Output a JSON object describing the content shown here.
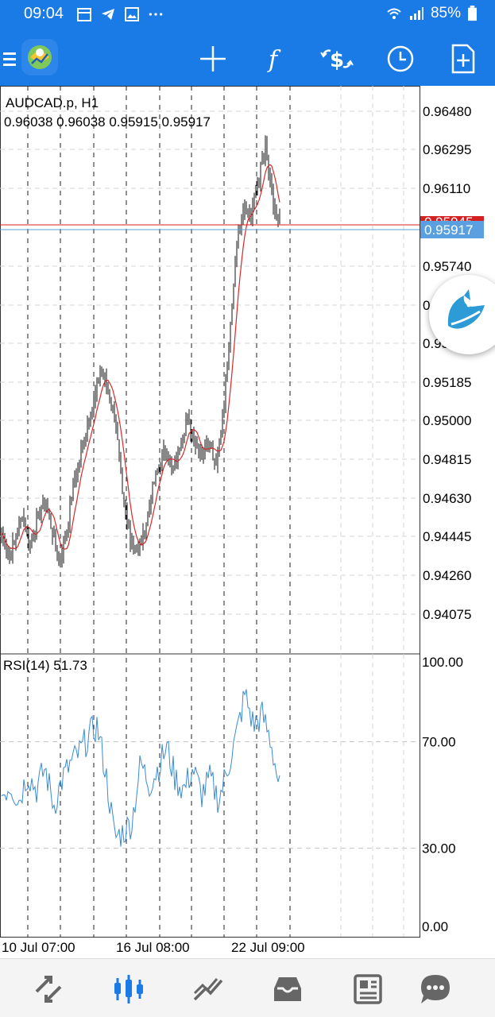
{
  "status_bar": {
    "time": "09:04",
    "battery": "85%",
    "left_icons": [
      "calendar-icon",
      "telegram-icon",
      "gallery-icon",
      "more-dots-icon"
    ],
    "right_icons": [
      "wifi-icon",
      "signal-icon",
      "battery-icon"
    ]
  },
  "toolbar": {
    "buttons": [
      "menu-icon",
      "metatrader-logo",
      "crosshair-icon",
      "indicator-icon",
      "trade-icon",
      "timeframe-icon",
      "new-order-icon"
    ]
  },
  "chart": {
    "symbol_timeframe": "AUDCAD.p, H1",
    "ohlc": "0.96038 0.96038 0.95915 0.95917",
    "price_ticks": [
      "0.96480",
      "0.96295",
      "0.96110",
      "0.95740",
      "0",
      "0.95",
      "0.95185",
      "0.95000",
      "0.94815",
      "0.94630",
      "0.94445",
      "0.94260",
      "0.94075"
    ],
    "bid_label": "0.95917",
    "ask_label": "0.95945",
    "date_labels": [
      "10 Jul 07:00",
      "16 Jul 08:00",
      "22 Jul 09:00"
    ],
    "rsi_label": "RSI(14) 51.73",
    "rsi_ticks": [
      "100.00",
      "70.00",
      "30.00",
      "0.00"
    ]
  },
  "colors": {
    "accent": "#1a7be6",
    "ma_line": "#d42a2a",
    "rsi_line": "#3a8ad6",
    "bid_line": "#5aa0e0",
    "ask_line": "#d42020"
  },
  "bottom_nav": {
    "items": [
      "quotes-icon",
      "chart-icon",
      "trade-icon",
      "history-icon",
      "news-icon",
      "chat-icon"
    ],
    "active": "chart-icon"
  },
  "chart_data": {
    "type": "candlestick",
    "ylim": [
      0.9398,
      0.9657
    ],
    "rsi_ylim": [
      0,
      100
    ],
    "price_key_points": [
      0.9446,
      0.9434,
      0.9444,
      0.9455,
      0.944,
      0.9452,
      0.9462,
      0.9448,
      0.9432,
      0.9445,
      0.9468,
      0.9482,
      0.9498,
      0.951,
      0.9525,
      0.9512,
      0.95,
      0.946,
      0.9445,
      0.9437,
      0.9446,
      0.9465,
      0.9478,
      0.9486,
      0.9475,
      0.9488,
      0.9502,
      0.949,
      0.9484,
      0.9492,
      0.948,
      0.95,
      0.954,
      0.9588,
      0.9603,
      0.9598,
      0.9615,
      0.963,
      0.9604,
      0.9592
    ],
    "rsi_key_points": [
      50,
      54,
      48,
      58,
      52,
      60,
      46,
      56,
      62,
      66,
      72,
      76,
      58,
      34,
      36,
      40,
      62,
      54,
      60,
      68,
      56,
      52,
      60,
      50,
      56,
      48,
      60,
      72,
      88,
      76,
      80,
      70,
      52
    ]
  }
}
